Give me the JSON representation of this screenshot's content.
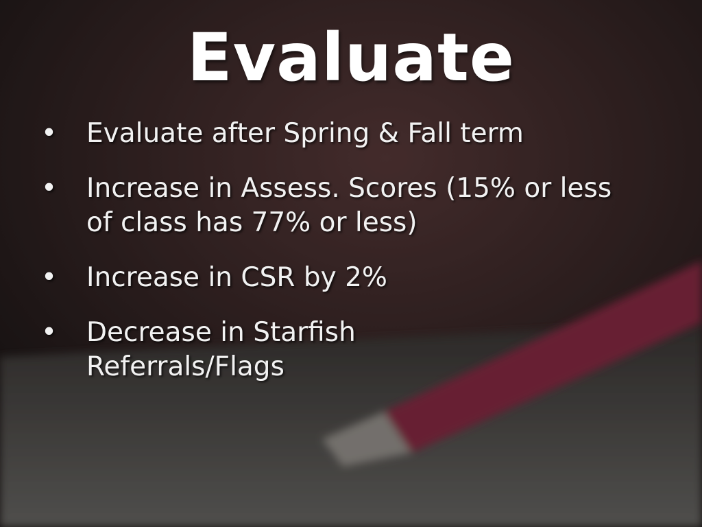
{
  "slide": {
    "title": "Evaluate",
    "bullet_glyph": "•",
    "bullets": [
      {
        "text": "Evaluate after Spring & Fall term"
      },
      {
        "text": "Increase in Assess. Scores (15% or less of class has 77% or less)"
      },
      {
        "text": "Increase in CSR by 2%"
      },
      {
        "text": "Decrease in Starfish Referrals/Flags"
      }
    ]
  },
  "background": {
    "image": "blurred-photo-of-red-pen-on-paper-form",
    "overlay_color": "#2a2221"
  }
}
